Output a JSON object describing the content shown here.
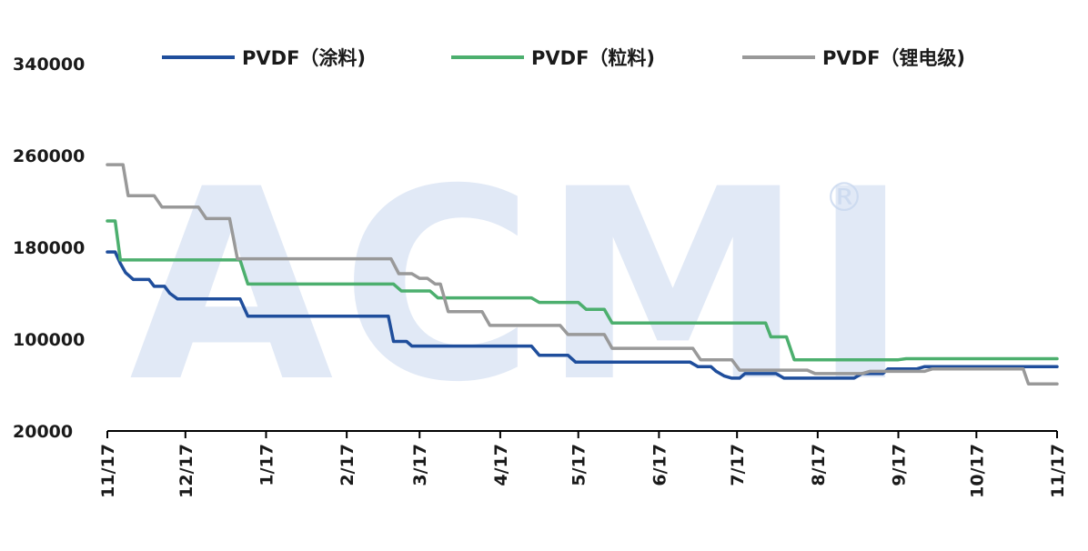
{
  "watermark": "ACMI",
  "watermark_mark": "®",
  "chart_data": {
    "type": "line",
    "title": "",
    "xlabel": "",
    "ylabel": "",
    "ylim": [
      20000,
      340000
    ],
    "yticks": [
      20000,
      100000,
      180000,
      260000,
      340000
    ],
    "ytick_labels": [
      "20000",
      "100000",
      "180000",
      "260000",
      "340000"
    ],
    "xlim": [
      "2021-11-17",
      "2022-11-17"
    ],
    "xticks": [
      "2021-11-17",
      "2021-12-17",
      "2022-01-17",
      "2022-02-17",
      "2022-03-17",
      "2022-04-17",
      "2022-05-17",
      "2022-06-17",
      "2022-07-17",
      "2022-08-17",
      "2022-09-17",
      "2022-10-17",
      "2022-11-17"
    ],
    "xtick_labels": [
      "11/17",
      "12/17",
      "1/17",
      "2/17",
      "3/17",
      "4/17",
      "5/17",
      "6/17",
      "7/17",
      "8/17",
      "9/17",
      "10/17",
      "11/17"
    ],
    "grid": false,
    "legend_position": "top",
    "colors": [
      "#1f4e9c",
      "#4caf6e",
      "#999999"
    ],
    "series": [
      {
        "name": "PVDF（涂料)",
        "points": [
          [
            "2021-11-17",
            176000
          ],
          [
            "2021-11-20",
            176000
          ],
          [
            "2021-11-22",
            166000
          ],
          [
            "2021-11-24",
            158000
          ],
          [
            "2021-11-27",
            152000
          ],
          [
            "2021-12-03",
            152000
          ],
          [
            "2021-12-05",
            146000
          ],
          [
            "2021-12-09",
            146000
          ],
          [
            "2021-12-11",
            140000
          ],
          [
            "2021-12-14",
            135000
          ],
          [
            "2022-01-07",
            135000
          ],
          [
            "2022-01-10",
            120000
          ],
          [
            "2022-03-05",
            120000
          ],
          [
            "2022-03-07",
            98000
          ],
          [
            "2022-03-12",
            98000
          ],
          [
            "2022-03-14",
            94000
          ],
          [
            "2022-04-29",
            94000
          ],
          [
            "2022-05-02",
            86000
          ],
          [
            "2022-05-13",
            86000
          ],
          [
            "2022-05-16",
            80000
          ],
          [
            "2022-06-29",
            80000
          ],
          [
            "2022-07-02",
            76000
          ],
          [
            "2022-07-07",
            76000
          ],
          [
            "2022-07-09",
            72000
          ],
          [
            "2022-07-12",
            68000
          ],
          [
            "2022-07-15",
            66000
          ],
          [
            "2022-07-18",
            66000
          ],
          [
            "2022-07-20",
            70000
          ],
          [
            "2022-08-01",
            70000
          ],
          [
            "2022-08-04",
            66000
          ],
          [
            "2022-08-31",
            66000
          ],
          [
            "2022-09-03",
            70000
          ],
          [
            "2022-09-11",
            70000
          ],
          [
            "2022-09-13",
            74000
          ],
          [
            "2022-09-24",
            74000
          ],
          [
            "2022-09-27",
            76000
          ],
          [
            "2022-11-17",
            76000
          ]
        ]
      },
      {
        "name": "PVDF（粒料)",
        "points": [
          [
            "2021-11-17",
            203000
          ],
          [
            "2021-11-20",
            203000
          ],
          [
            "2021-11-22",
            169000
          ],
          [
            "2022-01-07",
            169000
          ],
          [
            "2022-01-10",
            148000
          ],
          [
            "2022-03-07",
            148000
          ],
          [
            "2022-03-10",
            142000
          ],
          [
            "2022-03-21",
            142000
          ],
          [
            "2022-03-24",
            136000
          ],
          [
            "2022-04-29",
            136000
          ],
          [
            "2022-05-02",
            132000
          ],
          [
            "2022-05-17",
            132000
          ],
          [
            "2022-05-20",
            126000
          ],
          [
            "2022-05-27",
            126000
          ],
          [
            "2022-05-30",
            114000
          ],
          [
            "2022-07-28",
            114000
          ],
          [
            "2022-07-30",
            102000
          ],
          [
            "2022-08-05",
            102000
          ],
          [
            "2022-08-08",
            82000
          ],
          [
            "2022-09-17",
            82000
          ],
          [
            "2022-09-20",
            83000
          ],
          [
            "2022-11-17",
            83000
          ]
        ]
      },
      {
        "name": "PVDF（锂电级)",
        "points": [
          [
            "2021-11-17",
            252000
          ],
          [
            "2021-11-23",
            252000
          ],
          [
            "2021-11-25",
            225000
          ],
          [
            "2021-12-05",
            225000
          ],
          [
            "2021-12-08",
            215000
          ],
          [
            "2021-12-22",
            215000
          ],
          [
            "2021-12-25",
            205000
          ],
          [
            "2022-01-03",
            205000
          ],
          [
            "2022-01-06",
            170000
          ],
          [
            "2022-03-06",
            170000
          ],
          [
            "2022-03-09",
            157000
          ],
          [
            "2022-03-14",
            157000
          ],
          [
            "2022-03-17",
            153000
          ],
          [
            "2022-03-20",
            153000
          ],
          [
            "2022-03-23",
            148000
          ],
          [
            "2022-03-25",
            148000
          ],
          [
            "2022-03-28",
            124000
          ],
          [
            "2022-04-10",
            124000
          ],
          [
            "2022-04-13",
            112000
          ],
          [
            "2022-05-10",
            112000
          ],
          [
            "2022-05-13",
            104000
          ],
          [
            "2022-05-27",
            104000
          ],
          [
            "2022-05-30",
            92000
          ],
          [
            "2022-06-30",
            92000
          ],
          [
            "2022-07-03",
            82000
          ],
          [
            "2022-07-15",
            82000
          ],
          [
            "2022-07-18",
            73000
          ],
          [
            "2022-08-13",
            73000
          ],
          [
            "2022-08-16",
            70000
          ],
          [
            "2022-09-03",
            70000
          ],
          [
            "2022-09-06",
            72000
          ],
          [
            "2022-09-27",
            72000
          ],
          [
            "2022-09-30",
            74000
          ],
          [
            "2022-11-04",
            74000
          ],
          [
            "2022-11-06",
            61000
          ],
          [
            "2022-11-17",
            61000
          ]
        ]
      }
    ]
  }
}
